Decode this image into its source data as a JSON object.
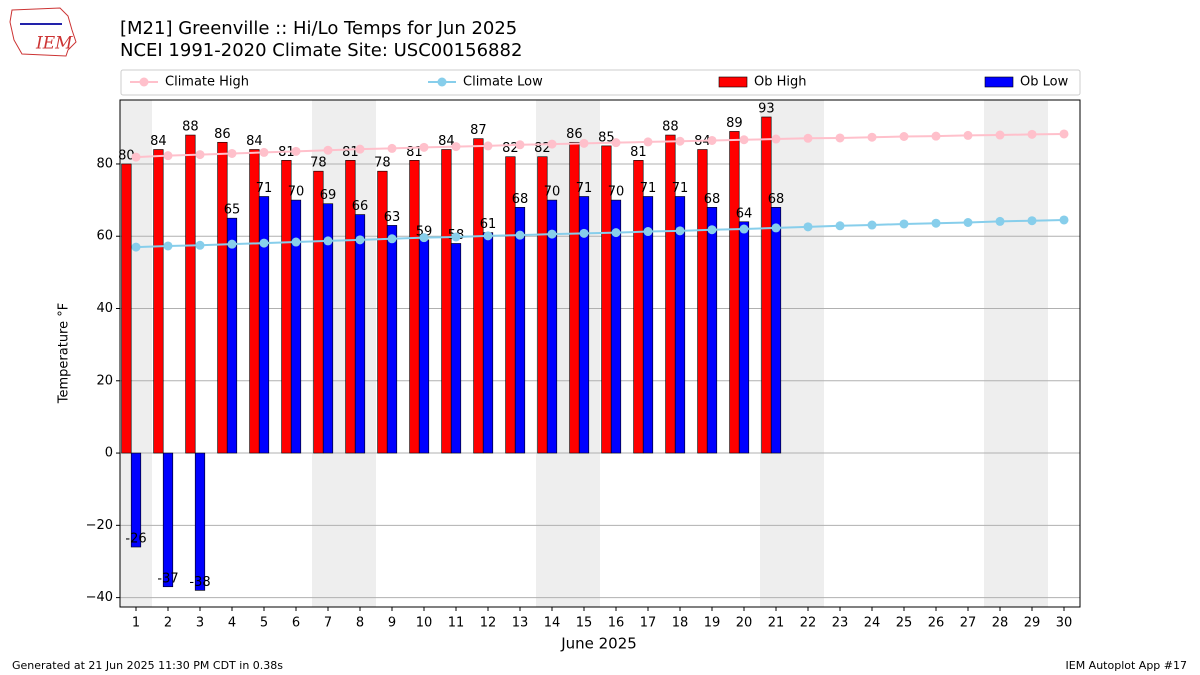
{
  "chart_data": {
    "type": "bar",
    "title": "[M21] Greenville :: Hi/Lo Temps for Jun 2025",
    "subtitle": "NCEI 1991-2020 Climate Site: USC00156882",
    "x_label": "June 2025",
    "y_label": "Temperature °F",
    "footer_left": "Generated at 21 Jun 2025 11:30 PM CDT in 0.38s",
    "footer_right": "IEM Autoplot App #17",
    "logo_text": "IEM",
    "x": [
      1,
      2,
      3,
      4,
      5,
      6,
      7,
      8,
      9,
      10,
      11,
      12,
      13,
      14,
      15,
      16,
      17,
      18,
      19,
      20,
      21,
      22,
      23,
      24,
      25,
      26,
      27,
      28,
      29,
      30
    ],
    "xlim": [
      0.5,
      30.5
    ],
    "xticks": [
      1,
      2,
      3,
      4,
      5,
      6,
      7,
      8,
      9,
      10,
      11,
      12,
      13,
      14,
      15,
      16,
      17,
      18,
      19,
      20,
      21,
      22,
      23,
      24,
      25,
      26,
      27,
      28,
      29,
      30
    ],
    "ylim": [
      -42.6,
      97.7
    ],
    "yticks": [
      {
        "value": -40,
        "label": "−40"
      },
      {
        "value": -20,
        "label": "−20"
      },
      0,
      20,
      40,
      60,
      80
    ],
    "grid": true,
    "weekend_shading": [
      1,
      7,
      8,
      14,
      15,
      21,
      22,
      28,
      29
    ],
    "series": [
      {
        "name": "Climate High",
        "type": "line",
        "color": "#ffc0cb",
        "values": [
          81.9,
          82.3,
          82.6,
          82.9,
          83.2,
          83.5,
          83.8,
          84.1,
          84.3,
          84.6,
          84.8,
          85.0,
          85.3,
          85.5,
          85.7,
          85.9,
          86.1,
          86.3,
          86.5,
          86.7,
          86.9,
          87.1,
          87.2,
          87.4,
          87.6,
          87.7,
          87.9,
          88.0,
          88.2,
          88.3
        ]
      },
      {
        "name": "Climate Low",
        "type": "line",
        "color": "#87ceeb",
        "values": [
          57.0,
          57.3,
          57.5,
          57.8,
          58.1,
          58.4,
          58.7,
          59.0,
          59.3,
          59.6,
          59.8,
          60.1,
          60.3,
          60.6,
          60.8,
          61.0,
          61.3,
          61.5,
          61.8,
          62.0,
          62.3,
          62.6,
          62.9,
          63.1,
          63.4,
          63.6,
          63.8,
          64.1,
          64.3,
          64.5
        ]
      },
      {
        "name": "Ob High",
        "type": "bar",
        "color": "#ff0000",
        "values": [
          80,
          84,
          88,
          86,
          84,
          81,
          78,
          81,
          78,
          81,
          84,
          87,
          82,
          82,
          86,
          85,
          81,
          88,
          84,
          89,
          93,
          null,
          null,
          null,
          null,
          null,
          null,
          null,
          null,
          null
        ]
      },
      {
        "name": "Ob Low",
        "type": "bar",
        "color": "#0000ff",
        "values": [
          -26,
          -37,
          -38,
          65,
          71,
          70,
          69,
          66,
          63,
          59,
          58,
          61,
          68,
          70,
          71,
          70,
          71,
          71,
          68,
          64,
          68,
          null,
          null,
          null,
          null,
          null,
          null,
          null,
          null,
          null
        ]
      }
    ]
  }
}
